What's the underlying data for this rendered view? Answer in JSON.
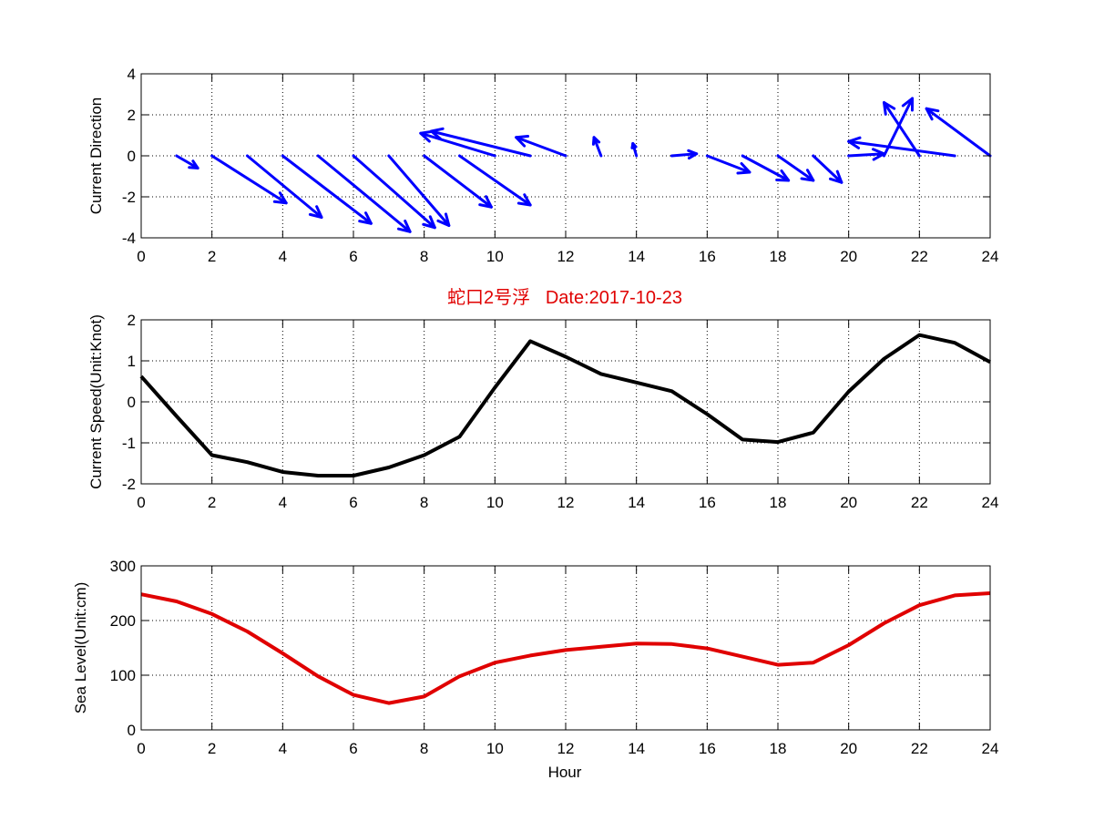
{
  "figure": {
    "title": "蛇口2号浮   Date:2017-10-23",
    "title_color": "#e00000",
    "xlabel": "Hour"
  },
  "chart_data": [
    {
      "id": "direction",
      "type": "quiver",
      "title": "",
      "xlabel": "",
      "ylabel": "Current Direction",
      "xlim": [
        0,
        24
      ],
      "ylim": [
        -4,
        4
      ],
      "xticks": [
        0,
        2,
        4,
        6,
        8,
        10,
        12,
        14,
        16,
        18,
        20,
        22,
        24
      ],
      "yticks": [
        -4,
        -2,
        0,
        2,
        4
      ],
      "grid": true,
      "color": "#0000ff",
      "series": [
        {
          "x": [
            1,
            2,
            3,
            4,
            5,
            6,
            7,
            8,
            9,
            10,
            11,
            12,
            13,
            14,
            15,
            16,
            17,
            18,
            19,
            20,
            21,
            22,
            23,
            24
          ],
          "u": [
            0.6,
            2.1,
            2.1,
            2.5,
            2.6,
            2.3,
            1.7,
            1.9,
            2.0,
            -2.1,
            -2.8,
            -1.4,
            -0.2,
            -0.1,
            0.7,
            1.2,
            1.3,
            1.0,
            0.8,
            1.0,
            0.8,
            -1.0,
            -3.0,
            -1.8
          ],
          "v": [
            -0.6,
            -2.3,
            -3.0,
            -3.3,
            -3.7,
            -3.5,
            -3.4,
            -2.5,
            -2.4,
            1.1,
            1.2,
            0.9,
            0.9,
            0.6,
            0.1,
            -0.8,
            -1.2,
            -1.2,
            -1.3,
            0.1,
            2.8,
            2.6,
            0.7,
            2.3
          ]
        }
      ]
    },
    {
      "id": "speed",
      "type": "line",
      "title": "",
      "xlabel": "",
      "ylabel": "Current Speed(Unit:Knot)",
      "xlim": [
        0,
        24
      ],
      "ylim": [
        -2,
        2
      ],
      "xticks": [
        0,
        2,
        4,
        6,
        8,
        10,
        12,
        14,
        16,
        18,
        20,
        22,
        24
      ],
      "yticks": [
        -2,
        -1,
        0,
        1,
        2
      ],
      "grid": true,
      "color": "#000000",
      "series": [
        {
          "x": [
            0,
            1,
            2,
            3,
            4,
            5,
            6,
            7,
            8,
            9,
            10,
            11,
            12,
            13,
            14,
            15,
            16,
            17,
            18,
            19,
            20,
            21,
            22,
            23,
            24
          ],
          "values": [
            0.62,
            -0.35,
            -1.3,
            -1.47,
            -1.71,
            -1.8,
            -1.8,
            -1.6,
            -1.3,
            -0.85,
            0.35,
            1.48,
            1.1,
            0.68,
            0.47,
            0.26,
            -0.3,
            -0.92,
            -0.98,
            -0.75,
            0.25,
            1.05,
            1.63,
            1.44,
            0.97
          ]
        }
      ]
    },
    {
      "id": "sea-level",
      "type": "line",
      "title": "",
      "xlabel": "Hour",
      "ylabel": "Sea Level(Unit:cm)",
      "xlim": [
        0,
        24
      ],
      "ylim": [
        0,
        300
      ],
      "xticks": [
        0,
        2,
        4,
        6,
        8,
        10,
        12,
        14,
        16,
        18,
        20,
        22,
        24
      ],
      "yticks": [
        0,
        100,
        200,
        300
      ],
      "grid": true,
      "color": "#e00000",
      "series": [
        {
          "x": [
            0,
            1,
            2,
            3,
            4,
            5,
            6,
            7,
            8,
            9,
            10,
            11,
            12,
            13,
            14,
            15,
            16,
            17,
            18,
            19,
            20,
            21,
            22,
            23,
            24
          ],
          "values": [
            248,
            235,
            212,
            180,
            140,
            98,
            64,
            49,
            61,
            98,
            123,
            136,
            146,
            152,
            158,
            157,
            149,
            134,
            119,
            123,
            155,
            195,
            228,
            246,
            250
          ]
        }
      ]
    }
  ]
}
